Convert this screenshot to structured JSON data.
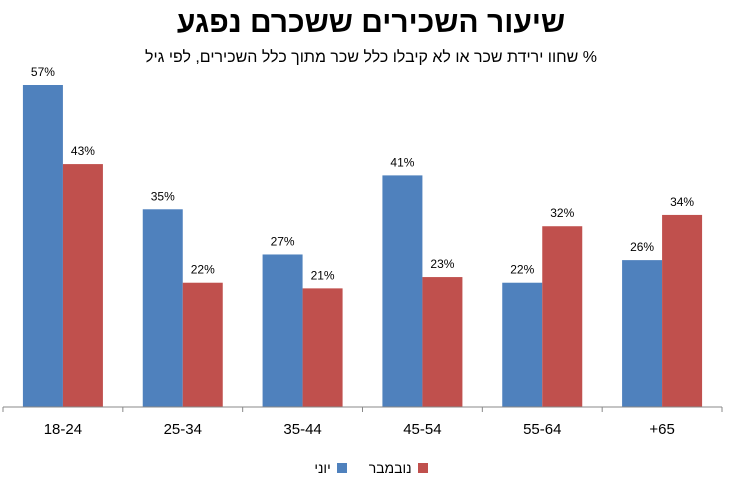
{
  "chart_data": {
    "type": "bar",
    "title": "שיעור השכירים ששכרם נפגע",
    "subtitle": "% שחוו ירידת שכר או לא קיבלו כלל שכר מתוך כלל השכירים, לפי גיל",
    "categories": [
      "18-24",
      "25-34",
      "35-44",
      "45-54",
      "55-64",
      "+65"
    ],
    "series": [
      {
        "name": "יוני",
        "color": "#4F81BD",
        "values": [
          57,
          35,
          27,
          41,
          22,
          26
        ],
        "labels": [
          "57%",
          "35%",
          "27%",
          "41%",
          "22%",
          "26%"
        ]
      },
      {
        "name": "נובמבר",
        "color": "#C0504D",
        "values": [
          43,
          22,
          21,
          23,
          32,
          34
        ],
        "labels": [
          "43%",
          "22%",
          "21%",
          "23%",
          "32%",
          "34%"
        ]
      }
    ],
    "ylim": [
      0,
      60
    ],
    "grid": false,
    "legend": "bottom"
  }
}
